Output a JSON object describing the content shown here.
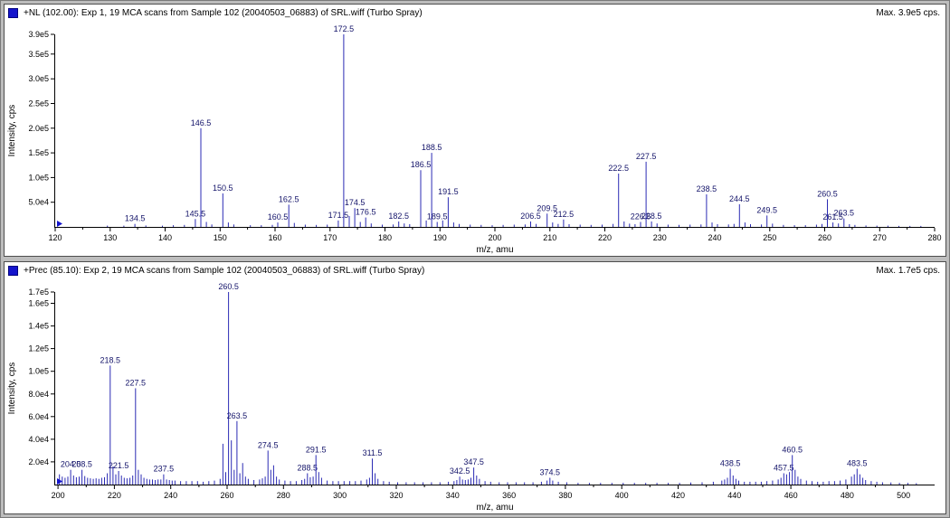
{
  "colors": {
    "background": "#bdbdbd",
    "accent": "#1414cc",
    "trace": "#2b2bb4",
    "peak_label": "#14146a",
    "axis": "#000000"
  },
  "panels": [
    {
      "title": "+NL (102.00): Exp 1, 19 MCA scans from Sample 102 (20040503_06883) of SRL.wiff (Turbo Spray)",
      "max_label": "Max. 3.9e5 cps."
    },
    {
      "title": "+Prec (85.10): Exp 2, 19 MCA scans from Sample 102 (20040503_06883) of SRL.wiff (Turbo Spray)",
      "max_label": "Max. 1.7e5 cps."
    }
  ],
  "chart_data": [
    {
      "type": "bar",
      "title": "+NL (102.00): Exp 1, 19 MCA scans from Sample 102 (20040503_06883) of SRL.wiff (Turbo Spray)",
      "xlabel": "m/z, amu",
      "ylabel": "Intensity, cps",
      "xlim": [
        120,
        280
      ],
      "ylim": [
        0,
        390000
      ],
      "x_ticks": [
        120,
        130,
        140,
        150,
        160,
        170,
        180,
        190,
        200,
        210,
        220,
        230,
        240,
        250,
        260,
        270,
        280
      ],
      "y_ticks": [
        [
          50000,
          "5.0e4"
        ],
        [
          100000,
          "1.0e5"
        ],
        [
          150000,
          "1.5e5"
        ],
        [
          200000,
          "2.0e5"
        ],
        [
          250000,
          "2.5e5"
        ],
        [
          300000,
          "3.0e5"
        ],
        [
          350000,
          "3.5e5"
        ],
        [
          390000,
          "3.9e5"
        ]
      ],
      "color": "#2b2bb4",
      "peaks": [
        [
          134.5,
          6000,
          "134.5"
        ],
        [
          145.5,
          16000,
          "145.5"
        ],
        [
          146.5,
          200000,
          "146.5"
        ],
        [
          150.5,
          68000,
          "150.5"
        ],
        [
          160.5,
          9000,
          "160.5"
        ],
        [
          162.5,
          45000,
          "162.5"
        ],
        [
          171.5,
          13000,
          "171.5"
        ],
        [
          172.5,
          390000,
          "172.5"
        ],
        [
          174.5,
          38000,
          "174.5"
        ],
        [
          176.5,
          19000,
          "176.5"
        ],
        [
          182.5,
          11000,
          "182.5"
        ],
        [
          186.5,
          115000,
          "186.5"
        ],
        [
          188.5,
          150000,
          "188.5"
        ],
        [
          189.5,
          10000,
          "189.5"
        ],
        [
          191.5,
          60000,
          "191.5"
        ],
        [
          206.5,
          11000,
          "206.5"
        ],
        [
          209.5,
          27000,
          "209.5"
        ],
        [
          212.5,
          15000,
          "212.5"
        ],
        [
          222.5,
          108000,
          "222.5"
        ],
        [
          226.5,
          10000,
          "226.5"
        ],
        [
          227.5,
          132000,
          "227.5"
        ],
        [
          228.5,
          11000,
          "228.5"
        ],
        [
          238.5,
          66000,
          "238.5"
        ],
        [
          244.5,
          46000,
          "244.5"
        ],
        [
          249.5,
          23000,
          "249.5"
        ],
        [
          260.5,
          56000,
          "260.5"
        ],
        [
          261.5,
          9000,
          "261.5"
        ],
        [
          263.5,
          17000,
          "263.5"
        ],
        [
          129.5,
          2500
        ],
        [
          132.5,
          2500
        ],
        [
          136.5,
          3000
        ],
        [
          139.5,
          2500
        ],
        [
          141.5,
          3500
        ],
        [
          143.5,
          4000
        ],
        [
          147.5,
          10000
        ],
        [
          148.5,
          5000
        ],
        [
          151.5,
          9000
        ],
        [
          152.5,
          5000
        ],
        [
          155.5,
          3500
        ],
        [
          157.5,
          3500
        ],
        [
          159.5,
          4000
        ],
        [
          163.5,
          8000
        ],
        [
          165.5,
          4500
        ],
        [
          167.5,
          4000
        ],
        [
          169.5,
          4500
        ],
        [
          173.5,
          22000
        ],
        [
          175.5,
          10000
        ],
        [
          177.5,
          7000
        ],
        [
          179.5,
          4500
        ],
        [
          181.5,
          5000
        ],
        [
          183.5,
          7000
        ],
        [
          184.5,
          5500
        ],
        [
          187.5,
          13000
        ],
        [
          190.5,
          13000
        ],
        [
          192.5,
          9000
        ],
        [
          193.5,
          6000
        ],
        [
          195.5,
          4500
        ],
        [
          197.5,
          4000
        ],
        [
          199.5,
          3500
        ],
        [
          201.5,
          4000
        ],
        [
          203.5,
          4500
        ],
        [
          205.5,
          5000
        ],
        [
          207.5,
          6000
        ],
        [
          210.5,
          9000
        ],
        [
          211.5,
          6000
        ],
        [
          213.5,
          5500
        ],
        [
          215.5,
          4500
        ],
        [
          217.5,
          4000
        ],
        [
          219.5,
          4500
        ],
        [
          221.5,
          6000
        ],
        [
          223.5,
          11000
        ],
        [
          224.5,
          6500
        ],
        [
          225.5,
          5500
        ],
        [
          229.5,
          7000
        ],
        [
          231.5,
          4500
        ],
        [
          233.5,
          4000
        ],
        [
          235.5,
          4500
        ],
        [
          237.5,
          5000
        ],
        [
          239.5,
          9000
        ],
        [
          240.5,
          5500
        ],
        [
          242.5,
          5000
        ],
        [
          243.5,
          6000
        ],
        [
          245.5,
          9000
        ],
        [
          246.5,
          5500
        ],
        [
          248.5,
          5000
        ],
        [
          250.5,
          6500
        ],
        [
          252.5,
          4000
        ],
        [
          254.5,
          3500
        ],
        [
          256.5,
          3500
        ],
        [
          258.5,
          4500
        ],
        [
          259.5,
          6000
        ],
        [
          262.5,
          7000
        ],
        [
          264.5,
          5500
        ],
        [
          265.5,
          4000
        ],
        [
          267.5,
          3000
        ],
        [
          269.5,
          2500
        ],
        [
          271.5,
          2500
        ],
        [
          273.5,
          2000
        ],
        [
          275.5,
          2000
        ],
        [
          277.5,
          2000
        ]
      ]
    },
    {
      "type": "bar",
      "title": "+Prec (85.10): Exp 2, 19 MCA scans from Sample 102 (20040503_06883) of SRL.wiff (Turbo Spray)",
      "xlabel": "m/z, amu",
      "ylabel": "Intensity, cps",
      "xlim": [
        199,
        511
      ],
      "ylim": [
        0,
        170000
      ],
      "x_ticks": [
        200,
        220,
        240,
        260,
        280,
        300,
        320,
        340,
        360,
        380,
        400,
        420,
        440,
        460,
        480,
        500
      ],
      "y_ticks": [
        [
          20000,
          "2.0e4"
        ],
        [
          40000,
          "4.0e4"
        ],
        [
          60000,
          "6.0e4"
        ],
        [
          80000,
          "8.0e4"
        ],
        [
          100000,
          "1.0e5"
        ],
        [
          120000,
          "1.2e5"
        ],
        [
          140000,
          "1.4e5"
        ],
        [
          160000,
          "1.6e5"
        ],
        [
          170000,
          "1.7e5"
        ]
      ],
      "color": "#2b2bb4",
      "peaks": [
        [
          204.5,
          13000,
          "204.5"
        ],
        [
          208.5,
          13000,
          "208.5"
        ],
        [
          218.5,
          105000,
          "218.5"
        ],
        [
          221.5,
          12000,
          "221.5"
        ],
        [
          227.5,
          85000,
          "227.5"
        ],
        [
          237.5,
          9000,
          "237.5"
        ],
        [
          260.5,
          170000,
          "260.5"
        ],
        [
          263.5,
          56000,
          "263.5"
        ],
        [
          274.5,
          30000,
          "274.5"
        ],
        [
          288.5,
          10000,
          "288.5"
        ],
        [
          291.5,
          26000,
          "291.5"
        ],
        [
          311.5,
          23000,
          "311.5"
        ],
        [
          342.5,
          7000,
          "342.5"
        ],
        [
          347.5,
          15000,
          "347.5"
        ],
        [
          374.5,
          6000,
          "374.5"
        ],
        [
          438.5,
          14000,
          "438.5"
        ],
        [
          457.5,
          10000,
          "457.5"
        ],
        [
          460.5,
          26000,
          "460.5"
        ],
        [
          483.5,
          14000,
          "483.5"
        ],
        [
          200.5,
          9000
        ],
        [
          201.5,
          7000
        ],
        [
          202.5,
          6000
        ],
        [
          203.5,
          7000
        ],
        [
          205.5,
          8000
        ],
        [
          206.5,
          6500
        ],
        [
          207.5,
          7000
        ],
        [
          209.5,
          7500
        ],
        [
          210.5,
          6000
        ],
        [
          211.5,
          5500
        ],
        [
          212.5,
          5000
        ],
        [
          213.5,
          5500
        ],
        [
          214.5,
          5000
        ],
        [
          215.5,
          6000
        ],
        [
          216.5,
          6500
        ],
        [
          217.5,
          10000
        ],
        [
          219.5,
          16000
        ],
        [
          220.5,
          9000
        ],
        [
          222.5,
          8000
        ],
        [
          223.5,
          6000
        ],
        [
          224.5,
          5500
        ],
        [
          225.5,
          6000
        ],
        [
          226.5,
          8000
        ],
        [
          228.5,
          13000
        ],
        [
          229.5,
          9000
        ],
        [
          230.5,
          6000
        ],
        [
          231.5,
          5000
        ],
        [
          232.5,
          4500
        ],
        [
          233.5,
          4500
        ],
        [
          234.5,
          4000
        ],
        [
          235.5,
          4500
        ],
        [
          236.5,
          4500
        ],
        [
          238.5,
          4500
        ],
        [
          239.5,
          4000
        ],
        [
          240.5,
          3500
        ],
        [
          241.5,
          3500
        ],
        [
          243.5,
          3000
        ],
        [
          245.5,
          3000
        ],
        [
          247.5,
          3000
        ],
        [
          249.5,
          3000
        ],
        [
          251.5,
          2500
        ],
        [
          253.5,
          3000
        ],
        [
          255.5,
          3500
        ],
        [
          257.5,
          5000
        ],
        [
          258.5,
          36000
        ],
        [
          259.5,
          11000
        ],
        [
          261.5,
          39000
        ],
        [
          262.5,
          13000
        ],
        [
          264.5,
          10000
        ],
        [
          265.5,
          19000
        ],
        [
          266.5,
          7000
        ],
        [
          267.5,
          5000
        ],
        [
          269.5,
          4000
        ],
        [
          271.5,
          4500
        ],
        [
          272.5,
          5500
        ],
        [
          273.5,
          7000
        ],
        [
          275.5,
          13000
        ],
        [
          276.5,
          17000
        ],
        [
          277.5,
          7000
        ],
        [
          278.5,
          4500
        ],
        [
          280.5,
          3500
        ],
        [
          282.5,
          3000
        ],
        [
          284.5,
          3000
        ],
        [
          286.5,
          4000
        ],
        [
          287.5,
          5000
        ],
        [
          289.5,
          6500
        ],
        [
          290.5,
          7000
        ],
        [
          292.5,
          11000
        ],
        [
          293.5,
          6000
        ],
        [
          295.5,
          3500
        ],
        [
          297.5,
          3000
        ],
        [
          299.5,
          3000
        ],
        [
          301.5,
          3000
        ],
        [
          303.5,
          3000
        ],
        [
          305.5,
          3000
        ],
        [
          307.5,
          3500
        ],
        [
          309.5,
          4500
        ],
        [
          310.5,
          6000
        ],
        [
          312.5,
          10000
        ],
        [
          313.5,
          5000
        ],
        [
          315.5,
          3000
        ],
        [
          317.5,
          2500
        ],
        [
          320.5,
          2000
        ],
        [
          323.5,
          2000
        ],
        [
          326.5,
          2000
        ],
        [
          329.5,
          2000
        ],
        [
          332.5,
          2000
        ],
        [
          335.5,
          2000
        ],
        [
          338.5,
          2500
        ],
        [
          340.5,
          3000
        ],
        [
          341.5,
          4000
        ],
        [
          343.5,
          4500
        ],
        [
          344.5,
          4000
        ],
        [
          345.5,
          4500
        ],
        [
          346.5,
          6000
        ],
        [
          348.5,
          8000
        ],
        [
          349.5,
          5000
        ],
        [
          351.5,
          3000
        ],
        [
          353.5,
          2500
        ],
        [
          356.5,
          2000
        ],
        [
          359.5,
          2000
        ],
        [
          362.5,
          2000
        ],
        [
          365.5,
          2000
        ],
        [
          368.5,
          2000
        ],
        [
          371.5,
          2500
        ],
        [
          373.5,
          3500
        ],
        [
          375.5,
          3500
        ],
        [
          377.5,
          2500
        ],
        [
          380.5,
          2000
        ],
        [
          384.5,
          1500
        ],
        [
          388.5,
          1500
        ],
        [
          392.5,
          1500
        ],
        [
          396.5,
          1500
        ],
        [
          400.5,
          1500
        ],
        [
          404.5,
          1500
        ],
        [
          408.5,
          1500
        ],
        [
          412.5,
          1500
        ],
        [
          416.5,
          1500
        ],
        [
          420.5,
          1500
        ],
        [
          424.5,
          1800
        ],
        [
          428.5,
          2000
        ],
        [
          432.5,
          2500
        ],
        [
          435.5,
          3500
        ],
        [
          436.5,
          4500
        ],
        [
          437.5,
          6000
        ],
        [
          439.5,
          8000
        ],
        [
          440.5,
          5000
        ],
        [
          441.5,
          3500
        ],
        [
          443.5,
          2500
        ],
        [
          445.5,
          2500
        ],
        [
          447.5,
          2500
        ],
        [
          449.5,
          2500
        ],
        [
          451.5,
          3000
        ],
        [
          453.5,
          3500
        ],
        [
          455.5,
          4500
        ],
        [
          456.5,
          6000
        ],
        [
          458.5,
          9000
        ],
        [
          459.5,
          11000
        ],
        [
          461.5,
          13000
        ],
        [
          462.5,
          7000
        ],
        [
          463.5,
          5000
        ],
        [
          465.5,
          3500
        ],
        [
          467.5,
          3000
        ],
        [
          469.5,
          2500
        ],
        [
          471.5,
          2500
        ],
        [
          473.5,
          3000
        ],
        [
          475.5,
          3000
        ],
        [
          477.5,
          3500
        ],
        [
          479.5,
          4500
        ],
        [
          481.5,
          7000
        ],
        [
          482.5,
          9000
        ],
        [
          484.5,
          9000
        ],
        [
          485.5,
          6000
        ],
        [
          486.5,
          4000
        ],
        [
          488.5,
          3000
        ],
        [
          490.5,
          2500
        ],
        [
          492.5,
          2000
        ],
        [
          495.5,
          1800
        ],
        [
          498.5,
          1500
        ],
        [
          501.5,
          1500
        ],
        [
          504.5,
          1200
        ]
      ]
    }
  ]
}
